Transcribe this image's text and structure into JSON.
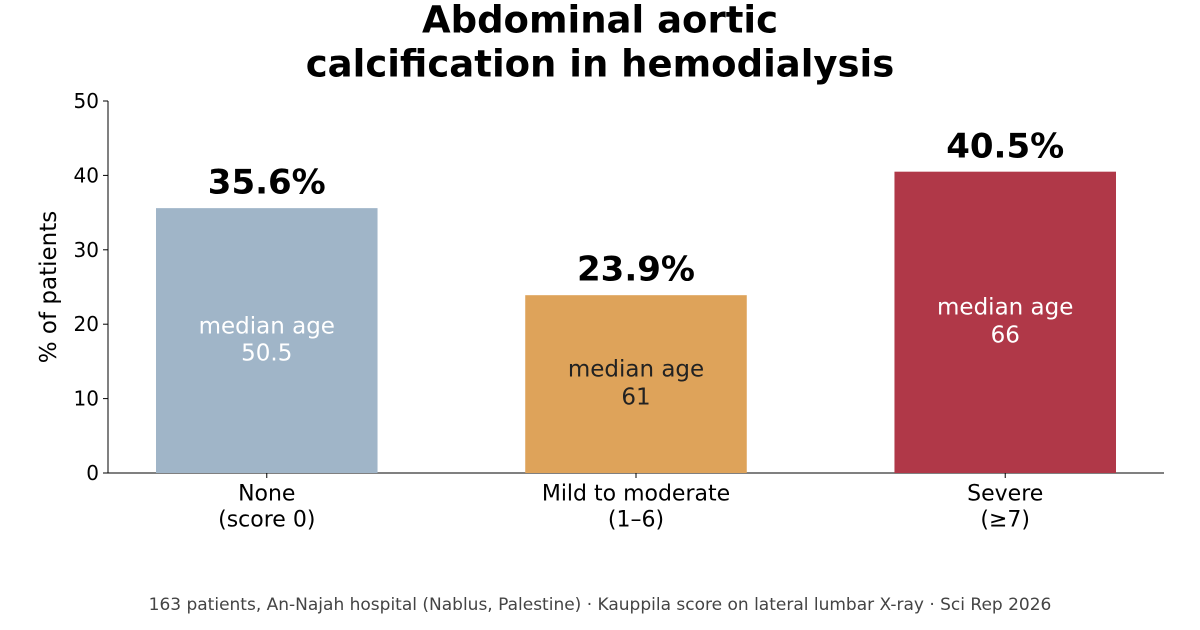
{
  "chart_data": {
    "type": "bar",
    "title": "Abdominal aortic calcification in hemodialysis",
    "ylabel": "% of patients",
    "categories": [
      "None\n(score 0)",
      "Mild to moderate\n(1–6)",
      "Severe\n(≥7)"
    ],
    "values": [
      35.6,
      23.9,
      40.5
    ],
    "value_labels": [
      "35.6%",
      "23.9%",
      "40.5%"
    ],
    "inner_labels": [
      "median age\n50.5",
      "median age\n61",
      "median age\n66"
    ],
    "colors": [
      "#a0b5c8",
      "#dea35a",
      "#b03848"
    ],
    "inner_label_colors": [
      "#ffffff",
      "#222222",
      "#ffffff"
    ],
    "ylim": [
      0,
      50
    ],
    "yticks": [
      0,
      10,
      20,
      30,
      40,
      50
    ],
    "footnote": "163 patients, An-Najah hospital (Nablus, Palestine) · Kauppila score on lateral lumbar X-ray · Sci Rep 2026"
  }
}
